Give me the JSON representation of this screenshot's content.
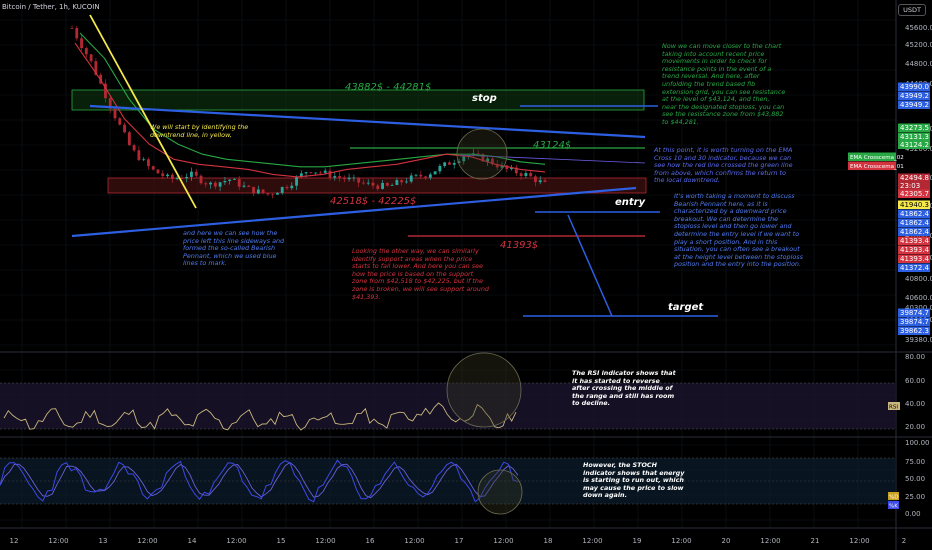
{
  "header": {
    "symbol": "Bitcoin / Tether, 1h, KUCOIN",
    "currency": "USDT"
  },
  "colors": {
    "background": "#000000",
    "up": "#26a69a",
    "down": "#b22833",
    "ema_green": "#27a844",
    "ema_red": "#d3323f",
    "blue_line": "#2d5fe3",
    "yellow_line": "#f5e94a",
    "resistance_zone": "#1f5a1f",
    "support_zone": "#5a1a1a",
    "rsi_line": "#c9b77e",
    "stoch_k": "#3d49e8",
    "stoch_d": "#6a5fd6"
  },
  "price_axis": {
    "ticks": [
      "45600.0",
      "45200.0",
      "44800.0",
      "44400.0",
      "43600.0",
      "43200.0",
      "42400.0",
      "42000.0",
      "41600.0",
      "41200.0",
      "40800.0",
      "40600.0",
      "40300.0",
      "40000.0",
      "39380.0"
    ],
    "tags": [
      {
        "text": "43990.0",
        "color": "#2d5fe3"
      },
      {
        "text": "43949.2",
        "color": "#2d5fe3"
      },
      {
        "text": "43949.2",
        "color": "#2d5fe3"
      },
      {
        "text": "43273.5",
        "color": "#27a844"
      },
      {
        "text": "43131.3",
        "color": "#27a844"
      },
      {
        "text": "43124.2",
        "color": "#27a844"
      },
      {
        "text": "42494.8",
        "color": "#b22833"
      },
      {
        "text": "23:03",
        "color": "#b22833"
      },
      {
        "text": "42305.7",
        "color": "#d3323f"
      },
      {
        "text": "41940.3",
        "color": "#f5e94a"
      },
      {
        "text": "41862.4",
        "color": "#2d5fe3"
      },
      {
        "text": "41862.4",
        "color": "#2d5fe3"
      },
      {
        "text": "41862.4",
        "color": "#2d5fe3"
      },
      {
        "text": "41393.4",
        "color": "#d3323f"
      },
      {
        "text": "41393.4",
        "color": "#d3323f"
      },
      {
        "text": "41393.4",
        "color": "#d3323f"
      },
      {
        "text": "41372.4",
        "color": "#2d5fe3"
      },
      {
        "text": "39874.7",
        "color": "#2d5fe3"
      },
      {
        "text": "39874.7",
        "color": "#2d5fe3"
      },
      {
        "text": "39862.3",
        "color": "#2d5fe3"
      }
    ],
    "ema_labels": [
      "EMA Crosscema_02",
      "EMA Crosscema_01"
    ]
  },
  "rsi_axis": {
    "ticks": [
      "80.00",
      "60.00",
      "40.00",
      "20.00"
    ],
    "tag": "RSI"
  },
  "stoch_axis": {
    "ticks": [
      "100.00",
      "75.00",
      "50.00",
      "25.00",
      "0.00"
    ],
    "tags": [
      "%D",
      "%K"
    ]
  },
  "time_axis": {
    "labels": [
      "12",
      "12:00",
      "13",
      "12:00",
      "14",
      "12:00",
      "15",
      "12:00",
      "16",
      "12:00",
      "17",
      "12:00",
      "18",
      "12:00",
      "19",
      "12:00",
      "20",
      "12:00",
      "21",
      "12:00",
      "2"
    ]
  },
  "levels": {
    "resistance_zone": "43882$ - 44281$",
    "stop": "stop",
    "level_43124": "43124$",
    "support_zone": "42518$ - 42225$",
    "entry": "entry",
    "level_41393": "41393$",
    "target": "target"
  },
  "annotations": {
    "yellow_note": "We will start by identifying the downtrend line, in yellow,",
    "blue_note": "and here we can see how the price left this line sideways and formed the so-called Bearish Pennant, which we used blue lines to mark.",
    "support_note": "Looking the other way, we can similarly identify support areas when the price starts to fall lower. And here you can see how the price is based on the support zone from $42,518 to $42,225, but if the zone is broken, we will see support around $41,393.",
    "resistance_note": "Now we can move closer to the chart taking into account recent price movements in order to check for resistance points in the event of a trend reversal. And here, after unfolding the trend based fib extension grid, you can see resistance at the level of $43,124, and then, near the designated stoploss, you can see the resistance zone from $43,882 to $44,281.",
    "ema_note": "At this point, it is worth turning on the EMA Cross 10 and 30 indicator, because we can see how the red line crossed the green line from above, which confirms the return to the local downtrend.",
    "pennant_note": "It's worth taking a moment to discuss Bearish Pennant here, as it is characterized by a downward price breakout. We can determine the stoploss level and then go lower and determine the entry level if we want to play a short position. And in this situation, you can often see a breakout at the height level between the stoploss position and the entry into the position.",
    "rsi_note": "The RSI indicator shows that it has started to reverse after crossing the middle of the range and still has room to decline.",
    "stoch_note": "However, the STOCH indicator shows that energy is starting to run out, which may cause the price to slow down again."
  },
  "chart_data": {
    "type": "candlestick",
    "title": "Bitcoin / Tether, 1h, KUCOIN",
    "price_range": [
      39380,
      45600
    ],
    "approx_close_path": [
      45600,
      44900,
      44000,
      43200,
      42800,
      42600,
      42700,
      42500,
      42600,
      42400,
      42300,
      42500,
      42800,
      42700,
      42600,
      42500,
      42450,
      42600,
      42700,
      42900,
      43100,
      43000,
      42800,
      42700,
      42500
    ],
    "ema_fast": [
      45300,
      44600,
      43800,
      43300,
      43000,
      42900,
      42850,
      42800,
      42700,
      42650,
      42700,
      42800,
      42850,
      42900,
      43000,
      43100,
      43050,
      42900,
      42800,
      42750
    ],
    "ema_slow": [
      45500,
      45000,
      44200,
      43600,
      43300,
      43100,
      43000,
      42950,
      42900,
      42850,
      42850,
      42900,
      42950,
      43000,
      43050,
      43100,
      43100,
      43050,
      42950,
      42900
    ],
    "levels": [
      {
        "name": "resistance zone",
        "from": 43882,
        "to": 44281
      },
      {
        "name": "resistance",
        "value": 43124
      },
      {
        "name": "support zone",
        "from": 42225,
        "to": 42518
      },
      {
        "name": "support",
        "value": 41393
      }
    ],
    "rsi": {
      "range": [
        20,
        80
      ]
    },
    "stoch": {
      "range": [
        0,
        100
      ]
    }
  }
}
